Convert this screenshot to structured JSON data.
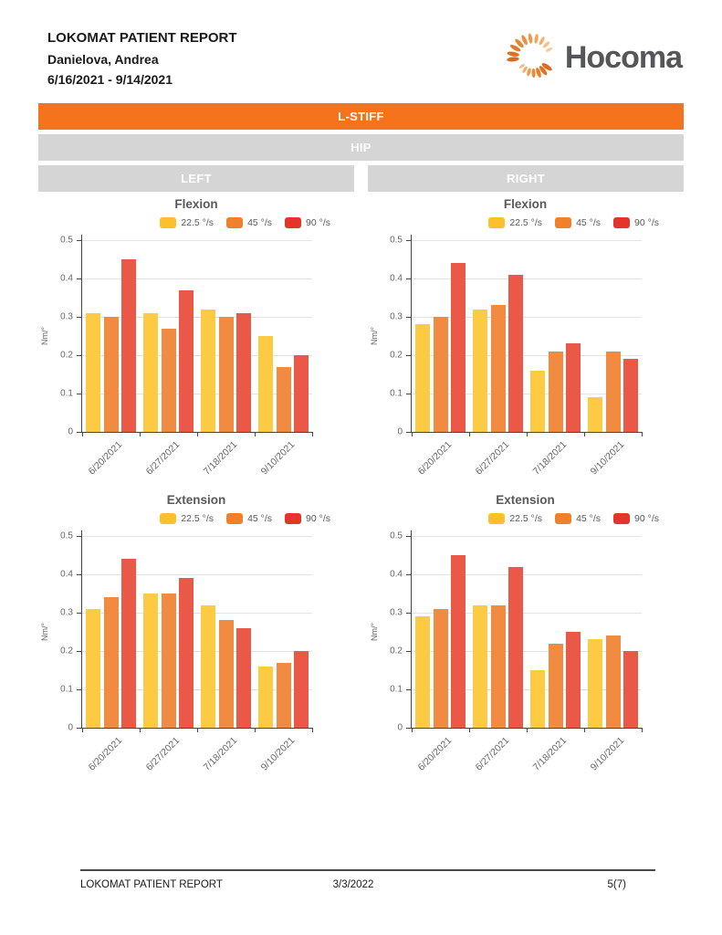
{
  "header": {
    "report_title": "LOKOMAT PATIENT REPORT",
    "patient_name": "Danielova, Andrea",
    "date_range": "6/16/2021 - 9/14/2021",
    "logo_text": "Hocoma"
  },
  "banners": {
    "measure": "L-STIFF",
    "joint": "HIP",
    "left": "LEFT",
    "right": "RIGHT"
  },
  "colors": {
    "banner_orange": "#F4731C",
    "banner_gray": "#D5D5D5",
    "axis": "#464646",
    "grid": "#E2E2E2",
    "series_swatch": [
      "#FBC02C",
      "#F0802B",
      "#E3352A"
    ],
    "series_bar": [
      "#FCCA43",
      "#F28B42",
      "#EA5848"
    ],
    "logo_text_color": "#55565A"
  },
  "chart_data": [
    {
      "type": "bar",
      "panel": "left",
      "title": "Flexion",
      "ylabel": "Nm/°",
      "ylim": [
        0,
        0.5
      ],
      "ytick_labels": [
        "0",
        "0.1",
        "0.2",
        "0.3",
        "0.4",
        "0.5"
      ],
      "grid": true,
      "legend_position": "top-right",
      "categories": [
        "6/20/2021",
        "6/27/2021",
        "7/18/2021",
        "9/10/2021"
      ],
      "series": [
        {
          "name": "22.5 °/s",
          "values": [
            0.31,
            0.31,
            0.32,
            0.25
          ]
        },
        {
          "name": "45 °/s",
          "values": [
            0.3,
            0.27,
            0.3,
            0.17
          ]
        },
        {
          "name": "90 °/s",
          "values": [
            0.45,
            0.37,
            0.31,
            0.2
          ]
        }
      ]
    },
    {
      "type": "bar",
      "panel": "right",
      "title": "Flexion",
      "ylabel": "Nm/°",
      "ylim": [
        0,
        0.5
      ],
      "ytick_labels": [
        "0",
        "0.1",
        "0.2",
        "0.3",
        "0.4",
        "0.5"
      ],
      "grid": true,
      "legend_position": "top-right",
      "categories": [
        "6/20/2021",
        "6/27/2021",
        "7/18/2021",
        "9/10/2021"
      ],
      "series": [
        {
          "name": "22.5 °/s",
          "values": [
            0.28,
            0.32,
            0.16,
            0.09
          ]
        },
        {
          "name": "45 °/s",
          "values": [
            0.3,
            0.33,
            0.21,
            0.21
          ]
        },
        {
          "name": "90 °/s",
          "values": [
            0.44,
            0.41,
            0.23,
            0.19
          ]
        }
      ]
    },
    {
      "type": "bar",
      "panel": "left",
      "title": "Extension",
      "ylabel": "Nm/°",
      "ylim": [
        0,
        0.5
      ],
      "ytick_labels": [
        "0",
        "0.1",
        "0.2",
        "0.3",
        "0.4",
        "0.5"
      ],
      "grid": true,
      "legend_position": "top-right",
      "categories": [
        "6/20/2021",
        "6/27/2021",
        "7/18/2021",
        "9/10/2021"
      ],
      "series": [
        {
          "name": "22.5 °/s",
          "values": [
            0.31,
            0.35,
            0.32,
            0.16
          ]
        },
        {
          "name": "45 °/s",
          "values": [
            0.34,
            0.35,
            0.28,
            0.17
          ]
        },
        {
          "name": "90 °/s",
          "values": [
            0.44,
            0.39,
            0.26,
            0.2
          ]
        }
      ]
    },
    {
      "type": "bar",
      "panel": "right",
      "title": "Extension",
      "ylabel": "Nm/°",
      "ylim": [
        0,
        0.5
      ],
      "ytick_labels": [
        "0",
        "0.1",
        "0.2",
        "0.3",
        "0.4",
        "0.5"
      ],
      "grid": true,
      "legend_position": "top-right",
      "categories": [
        "6/20/2021",
        "6/27/2021",
        "7/18/2021",
        "9/10/2021"
      ],
      "series": [
        {
          "name": "22.5 °/s",
          "values": [
            0.29,
            0.32,
            0.15,
            0.23
          ]
        },
        {
          "name": "45 °/s",
          "values": [
            0.31,
            0.32,
            0.22,
            0.24
          ]
        },
        {
          "name": "90 °/s",
          "values": [
            0.45,
            0.42,
            0.25,
            0.2
          ]
        }
      ]
    }
  ],
  "footer": {
    "left": "LOKOMAT PATIENT REPORT",
    "center": "3/3/2022",
    "right": "5(7)"
  }
}
